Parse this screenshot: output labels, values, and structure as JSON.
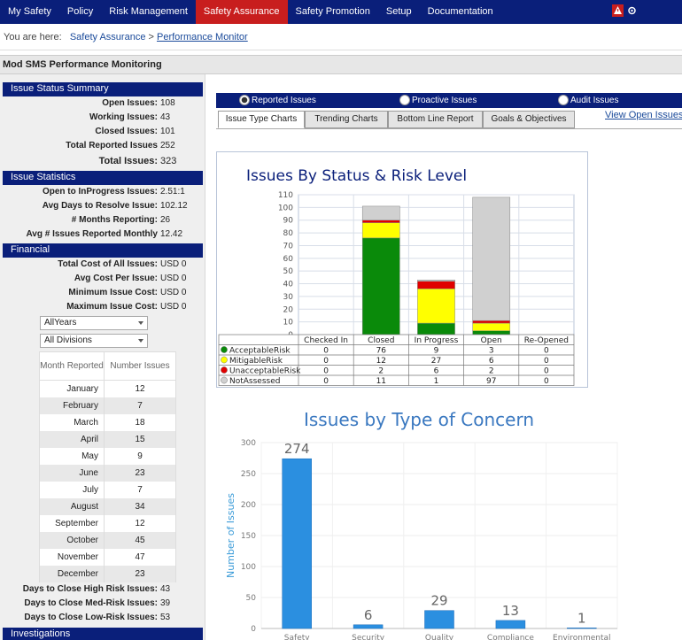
{
  "nav": {
    "items": [
      "My Safety",
      "Policy",
      "Risk Management",
      "Safety Assurance",
      "Safety Promotion",
      "Setup",
      "Documentation"
    ],
    "active_index": 3,
    "icon_names": [
      "alert-icon",
      "settings-icon"
    ]
  },
  "breadcrumb": {
    "prefix": "You are here:",
    "parent": "Safety Assurance",
    "sep": ">",
    "current": "Performance Monitor"
  },
  "page_title": "Mod SMS  Performance Monitoring",
  "issue_status": {
    "heading": "Issue Status Summary",
    "rows": [
      {
        "label": "Open Issues:",
        "value": "108"
      },
      {
        "label": "Working Issues:",
        "value": "43"
      },
      {
        "label": "Closed Issues:",
        "value": "101"
      },
      {
        "label": "Total Reported Issues",
        "value": "252"
      }
    ],
    "total": {
      "label": "Total Issues:",
      "value": "323"
    }
  },
  "issue_stats": {
    "heading": "Issue Statistics",
    "rows": [
      {
        "label": "Open to InProgress Issues:",
        "value": "2.51:1"
      },
      {
        "label": "Avg Days to Resolve Issue:",
        "value": "102.12"
      },
      {
        "label": "# Months Reporting:",
        "value": "26"
      },
      {
        "label": "Avg # Issues Reported Monthly",
        "value": "12.42"
      }
    ]
  },
  "financial": {
    "heading": "Financial",
    "rows": [
      {
        "label": "Total Cost of All Issues:",
        "value": "USD 0"
      },
      {
        "label": "Avg Cost Per Issue:",
        "value": "USD 0"
      },
      {
        "label": "Minimum Issue Cost:",
        "value": "USD 0"
      },
      {
        "label": "Maximum Issue Cost:",
        "value": "USD 0"
      }
    ]
  },
  "filters": {
    "year": "AllYears",
    "division": "All Divisions"
  },
  "month_table": {
    "headers": [
      "Month Reported",
      "Number Issues"
    ],
    "rows": [
      [
        "January",
        "12"
      ],
      [
        "February",
        "7"
      ],
      [
        "March",
        "18"
      ],
      [
        "April",
        "15"
      ],
      [
        "May",
        "9"
      ],
      [
        "June",
        "23"
      ],
      [
        "July",
        "7"
      ],
      [
        "August",
        "34"
      ],
      [
        "September",
        "12"
      ],
      [
        "October",
        "45"
      ],
      [
        "November",
        "47"
      ],
      [
        "December",
        "23"
      ]
    ]
  },
  "days_to_close": [
    {
      "label": "Days to Close High Risk Issues:",
      "value": "43"
    },
    {
      "label": "Days to Close Med-Risk Issues:",
      "value": "39"
    },
    {
      "label": "Days to Close Low-Risk Issues:",
      "value": "53"
    }
  ],
  "investigations_heading": "Investigations",
  "radios": [
    {
      "label": "Reported Issues",
      "checked": true
    },
    {
      "label": "Proactive Issues",
      "checked": false
    },
    {
      "label": "Audit Issues",
      "checked": false
    }
  ],
  "tabs": [
    "Issue Type Charts",
    "Trending Charts",
    "Bottom Line Report",
    "Goals & Objectives"
  ],
  "active_tab": 0,
  "view_open_link": "View Open Issues",
  "chart_data": [
    {
      "type": "bar",
      "stacked": true,
      "title": "Issues By Status & Risk Level",
      "categories": [
        "Checked In",
        "Closed",
        "In Progress",
        "Open",
        "Re-Opened"
      ],
      "series": [
        {
          "name": "AcceptableRisk",
          "color": "#0a8a0a",
          "values": [
            0,
            76,
            9,
            3,
            0
          ]
        },
        {
          "name": "MitigableRisk",
          "color": "#ffff00",
          "values": [
            0,
            12,
            27,
            6,
            0
          ]
        },
        {
          "name": "UnacceptableRisk",
          "color": "#e00000",
          "values": [
            0,
            2,
            6,
            2,
            0
          ]
        },
        {
          "name": "NotAssessed",
          "color": "#d0d0d0",
          "values": [
            0,
            11,
            1,
            97,
            0
          ]
        }
      ],
      "ylim": [
        0,
        110
      ],
      "yticks": [
        0,
        10,
        20,
        30,
        40,
        50,
        60,
        70,
        80,
        90,
        100,
        110
      ],
      "grid": true,
      "legend": "bottom-table"
    },
    {
      "type": "bar",
      "title": "Issues by Type of Concern",
      "categories": [
        "Safety",
        "Security",
        "Quality",
        "Compliance",
        "Environmental"
      ],
      "values": [
        274,
        6,
        29,
        13,
        1
      ],
      "ylabel": "Number of Issues",
      "ylim": [
        0,
        300
      ],
      "yticks": [
        0,
        50,
        100,
        150,
        200,
        250,
        300
      ],
      "color": "#2b8fe0",
      "grid": true
    }
  ]
}
